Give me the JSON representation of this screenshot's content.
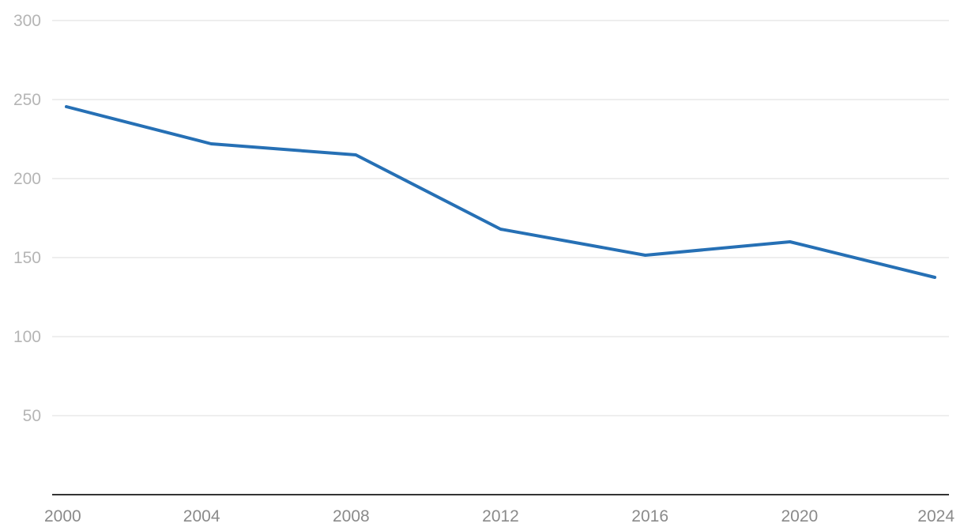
{
  "chart_data": {
    "type": "line",
    "title": "",
    "xlabel": "",
    "ylabel": "",
    "x": [
      2000,
      2004,
      2008,
      2012,
      2016,
      2020,
      2024
    ],
    "x_tick_labels": [
      "2000",
      "2004",
      "2008",
      "2012",
      "2016",
      "2020",
      "2024"
    ],
    "y_tick_values": [
      50,
      100,
      150,
      200,
      250,
      300
    ],
    "y_tick_labels": [
      "50",
      "100",
      "150",
      "200",
      "250",
      "300"
    ],
    "xlim": [
      2000,
      2024
    ],
    "ylim": [
      0,
      300
    ],
    "grid": true,
    "legend": "none",
    "series": [
      {
        "color": "#2670b5",
        "values": [
          245.5,
          222,
          215,
          168,
          151.5,
          160,
          137.5
        ]
      }
    ]
  }
}
